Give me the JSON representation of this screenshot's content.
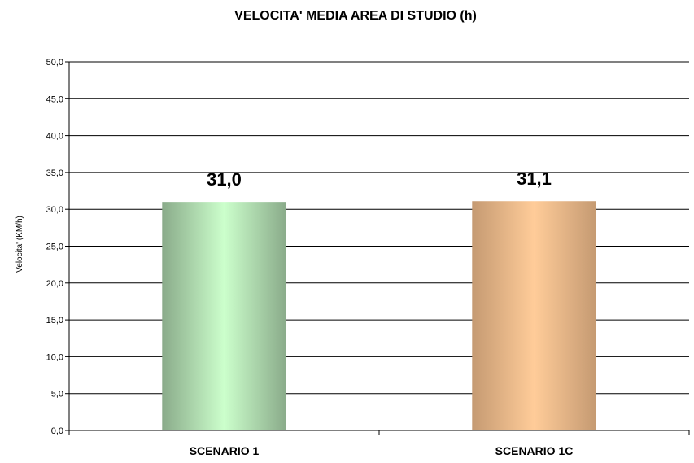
{
  "chart_data": {
    "type": "bar",
    "title": "VELOCITA' MEDIA AREA DI STUDIO (h)",
    "ylabel": "Velocita' (KM/h)",
    "xlabel": "",
    "ylim": [
      0,
      50
    ],
    "yticks": [
      "0,0",
      "5,0",
      "10,0",
      "15,0",
      "20,0",
      "25,0",
      "30,0",
      "35,0",
      "40,0",
      "45,0",
      "50,0"
    ],
    "categories": [
      "SCENARIO 1",
      "SCENARIO 1C"
    ],
    "values": [
      31.0,
      31.1
    ],
    "data_labels": [
      "31,0",
      "31,1"
    ],
    "bar_colors": [
      {
        "edge": "#8aab8a",
        "mid": "#ccffcc"
      },
      {
        "edge": "#c59a72",
        "mid": "#ffcc99"
      }
    ],
    "grid": true,
    "legend": "none"
  }
}
